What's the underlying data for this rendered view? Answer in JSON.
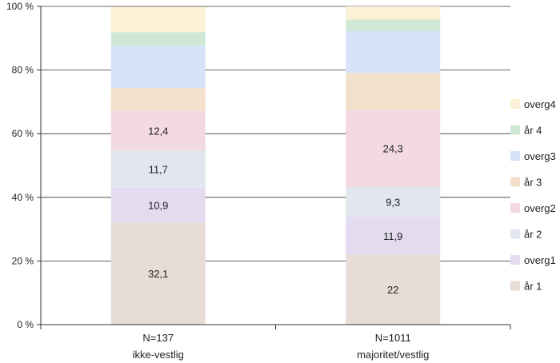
{
  "chart_data": {
    "type": "bar",
    "stacked": true,
    "ylim": [
      0,
      100
    ],
    "yticks": [
      0,
      20,
      40,
      60,
      80,
      100
    ],
    "ytick_labels": [
      "0 %",
      "20 %",
      "40 %",
      "60 %",
      "80 %",
      "100 %"
    ],
    "grid": true,
    "legend_position": "right",
    "categories": [
      {
        "n_label": "N=137",
        "group_label": "ikke-vestlig"
      },
      {
        "n_label": "N=1011",
        "group_label": "majoritet/vestlig"
      }
    ],
    "series": [
      {
        "name": "år 1",
        "color": "#e8dcd6",
        "values": [
          32.1,
          22
        ],
        "labels": [
          "32,1",
          "22"
        ]
      },
      {
        "name": "overg1",
        "color": "#e3dcf0",
        "values": [
          10.9,
          11.9
        ],
        "labels": [
          "10,9",
          "11,9"
        ]
      },
      {
        "name": "år 2",
        "color": "#e2e6ee",
        "values": [
          11.7,
          9.3
        ],
        "labels": [
          "11,7",
          "9,3"
        ]
      },
      {
        "name": "overg2",
        "color": "#f2d9e2",
        "values": [
          12.4,
          24.3
        ],
        "labels": [
          "12,4",
          "24,3"
        ]
      },
      {
        "name": "år 3",
        "color": "#f2e0cc",
        "values": [
          7.2,
          11.6
        ],
        "labels": [
          "",
          ""
        ]
      },
      {
        "name": "overg3",
        "color": "#d7e4f7",
        "values": [
          13.5,
          13.1
        ],
        "labels": [
          "",
          ""
        ]
      },
      {
        "name": "år 4",
        "color": "#cfe8d6",
        "values": [
          4.1,
          3.7
        ],
        "labels": [
          "",
          ""
        ]
      },
      {
        "name": "overg4",
        "color": "#fcf1d6",
        "values": [
          8.0,
          4.1
        ],
        "labels": [
          "",
          ""
        ]
      }
    ]
  }
}
